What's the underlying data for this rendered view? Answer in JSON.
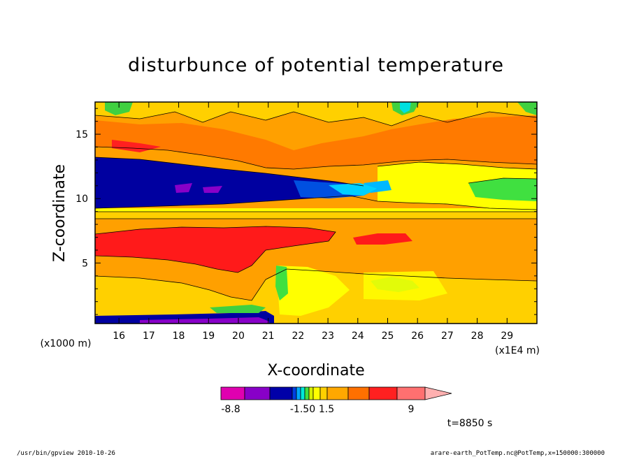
{
  "chart_data": {
    "type": "heatmap",
    "title": "disturbunce of potential temperature",
    "xlabel": "X-coordinate",
    "ylabel": "Z-coordinate",
    "x_units": "(x1E4 m)",
    "y_units": "(x1000 m)",
    "xlim": [
      15.2,
      30
    ],
    "ylim": [
      0.3,
      17.5
    ],
    "x_ticks": [
      16,
      17,
      18,
      19,
      20,
      21,
      22,
      23,
      24,
      25,
      26,
      27,
      28,
      29
    ],
    "y_ticks": [
      5,
      10,
      15
    ],
    "time_label": "t=8850 s",
    "colorbar": {
      "ticks": [
        {
          "value": -8.8,
          "label": "-8.8"
        },
        {
          "value": -1.5,
          "label": "-1.50"
        },
        {
          "value": 1.5,
          "label": "1.5"
        },
        {
          "value": 9,
          "label": "9"
        }
      ],
      "colors": [
        "#e000b0",
        "#8800c8",
        "#0000a8",
        "#0040e0",
        "#00a8ff",
        "#00e8d8",
        "#40e040",
        "#d8f000",
        "#ffff00",
        "#ffd000",
        "#ffa800",
        "#ff7000",
        "#ff2020",
        "#ff7070",
        "#ffb0b0"
      ]
    },
    "bands": [
      {
        "name": "orange-base",
        "z": [
          0.3,
          17.5
        ],
        "color": "#ff9a00"
      },
      {
        "name": "lower-yellow",
        "z": [
          0.3,
          3.2
        ],
        "color": "#ffd000"
      },
      {
        "name": "blue-layer",
        "z": [
          9.3,
          13.0
        ],
        "color": "#0000a0"
      },
      {
        "name": "red-lower",
        "z": [
          5.5,
          7.8
        ],
        "color": "#ff1a1a"
      }
    ]
  },
  "footer": {
    "left": "/usr/bin/gpview   2010-10-26",
    "right": "arare-earth_PotTemp.nc@PotTemp,x=150000:300000"
  }
}
